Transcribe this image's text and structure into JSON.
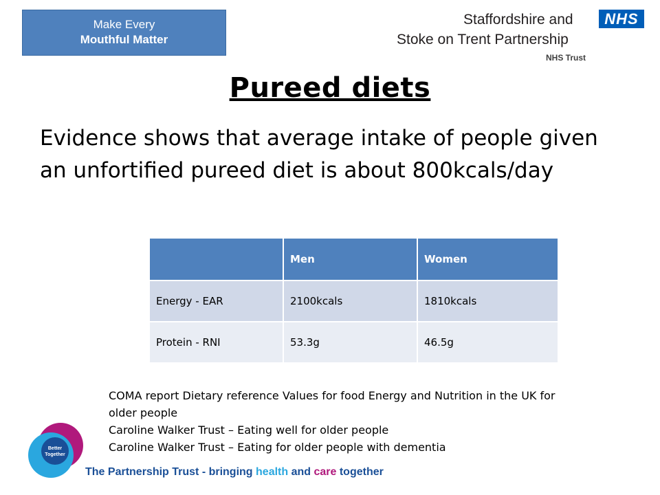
{
  "banner": {
    "line1": "Make Every",
    "line2": "Mouthful Matter"
  },
  "org": {
    "line1": "Staffordshire and",
    "line2": "Stoke on Trent Partnership",
    "line3": "NHS Trust",
    "logo_text": "NHS"
  },
  "title": "Pureed diets",
  "intro": "Evidence shows that average intake of people given an unfortified pureed diet is about 800kcals/day",
  "table": {
    "headers": [
      "",
      "Men",
      "Women"
    ],
    "rows": [
      [
        "Energy - EAR",
        "2100kcals",
        "1810kcals"
      ],
      [
        "Protein - RNI",
        "53.3g",
        "46.5g"
      ]
    ]
  },
  "references": [
    "COMA report Dietary reference Values for food Energy and Nutrition in the UK for older people",
    "Caroline Walker Trust – Eating well for older people",
    "Caroline Walker Trust – Eating for older people with dementia"
  ],
  "better_together": {
    "line1": "Better",
    "line2": "Together"
  },
  "footer": {
    "part1": "The Partnership Trust - bringing ",
    "part2": "health",
    "part3": " and ",
    "part4": "care",
    "part5": " together"
  },
  "colors": {
    "banner": "#4f81bd",
    "header_row": "#4f81bd",
    "row_light": "#d0d8e8",
    "row_lighter": "#e9edf4",
    "nhs_blue": "#005eb8",
    "logo_magenta": "#b0197c",
    "logo_cyan": "#2aa7df"
  }
}
